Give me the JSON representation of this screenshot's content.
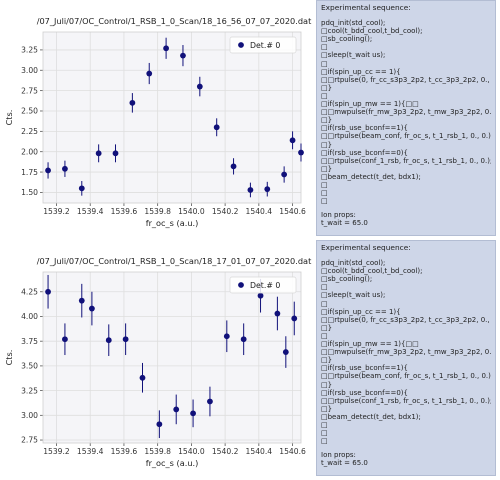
{
  "colors": {
    "marker": "#11117a",
    "grid": "#dedede",
    "plot_bg": "#f5f5f8",
    "info_bg": "#ced6e8"
  },
  "chart_data": [
    {
      "type": "scatter",
      "title": "/07_Juli/07/OC_Control/1_RSB_1_0_Scan/18_16_56_07_07_2020.dat",
      "xlabel": "fr_oc_s (a.u.)",
      "ylabel": "Cts.",
      "xlim": [
        1539.12,
        1540.65
      ],
      "ylim": [
        1.37,
        3.47
      ],
      "xticks": [
        "1539.2",
        "1539.4",
        "1539.6",
        "1539.8",
        "1540.0",
        "1540.2",
        "1540.4",
        "1540.6"
      ],
      "xtick_values": [
        1539.2,
        1539.4,
        1539.6,
        1539.8,
        1540.0,
        1540.2,
        1540.4,
        1540.6
      ],
      "yticks": [
        "1.50",
        "1.75",
        "2.00",
        "2.25",
        "2.50",
        "2.75",
        "3.00",
        "3.25"
      ],
      "ytick_values": [
        1.5,
        1.75,
        2.0,
        2.25,
        2.5,
        2.75,
        3.0,
        3.25
      ],
      "legend": {
        "label": "Det.# 0",
        "placement": "top-right"
      },
      "grid": true,
      "series": [
        {
          "name": "Det.# 0",
          "x": [
            1539.15,
            1539.25,
            1539.35,
            1539.45,
            1539.55,
            1539.65,
            1539.75,
            1539.85,
            1539.95,
            1540.05,
            1540.15,
            1540.25,
            1540.35,
            1540.45,
            1540.55,
            1540.65
          ],
          "y": [
            1.77,
            1.79,
            1.55,
            1.98,
            1.98,
            2.6,
            2.96,
            3.27,
            3.18,
            2.8,
            2.3,
            1.82,
            1.53,
            1.54,
            1.72,
            1.99
          ],
          "err": [
            0.1,
            0.1,
            0.09,
            0.11,
            0.11,
            0.12,
            0.13,
            0.13,
            0.13,
            0.12,
            0.11,
            0.1,
            0.09,
            0.09,
            0.1,
            0.11
          ]
        }
      ],
      "extra_points": {
        "x": [
          1540.6
        ],
        "y": [
          2.14
        ],
        "err": [
          0.11
        ]
      }
    },
    {
      "type": "scatter",
      "title": "/07_Juli/07/OC_Control/1_RSB_1_0_Scan/18_17_01_07_07_2020.dat",
      "xlabel": "fr_oc_s (a.u.)",
      "ylabel": "Cts.",
      "xlim": [
        1539.12,
        1540.65
      ],
      "ylim": [
        2.72,
        4.45
      ],
      "xticks": [
        "1539.2",
        "1539.4",
        "1539.6",
        "1539.8",
        "1540.0",
        "1540.2",
        "1540.4",
        "1540.6"
      ],
      "xtick_values": [
        1539.2,
        1539.4,
        1539.6,
        1539.8,
        1540.0,
        1540.2,
        1540.4,
        1540.6
      ],
      "yticks": [
        "2.75",
        "3.00",
        "3.25",
        "3.50",
        "3.75",
        "4.00",
        "4.25"
      ],
      "ytick_values": [
        2.75,
        3.0,
        3.25,
        3.5,
        3.75,
        4.0,
        4.25
      ],
      "legend": {
        "label": "Det.# 0",
        "placement": "top-right"
      },
      "grid": true,
      "series": [
        {
          "name": "Det.# 0",
          "x": [
            1539.15,
            1539.25,
            1539.35,
            1539.41,
            1539.51,
            1539.61,
            1539.71,
            1539.81,
            1539.91,
            1540.01,
            1540.11,
            1540.21,
            1540.31,
            1540.41,
            1540.51,
            1540.61
          ],
          "y": [
            4.25,
            3.77,
            4.16,
            4.08,
            3.76,
            3.77,
            3.38,
            2.91,
            3.06,
            3.02,
            3.14,
            3.8,
            3.77,
            4.21,
            4.03,
            3.98
          ],
          "err": [
            0.17,
            0.16,
            0.17,
            0.17,
            0.16,
            0.16,
            0.15,
            0.14,
            0.15,
            0.14,
            0.15,
            0.16,
            0.16,
            0.17,
            0.17,
            0.17
          ]
        }
      ],
      "extra_points": {
        "x": [
          1540.56
        ],
        "y": [
          3.64
        ],
        "err": [
          0.16
        ]
      }
    }
  ],
  "info_panels": [
    {
      "header": "Experimental sequence:",
      "lines": [
        "pdq_init(std_cool);",
        "□cool(t_bdd_cool,t_bd_cool);",
        "□sb_cooling();",
        "□",
        "□sleep(t_wait us);",
        "□",
        "□if(spin_up_cc == 1){",
        "□□rtpulse(0, fr_cc_s3p3_2p2, t_cc_3p3_2p2, 0., 0.);",
        "□}",
        "□",
        "□if(spin_up_mw == 1){□□",
        "□□mwpulse(fr_mw_3p3_2p2, t_mw_3p3_2p2, 0., 0.);",
        "□}",
        "□if(rsb_use_bconf==1){",
        "□□rtpulse(beam_conf, fr_oc_s, t_1_rsb_1, 0., 0.);",
        "□}",
        "□if(rsb_use_bconf==0){",
        "□□rtpulse(conf_1_rsb, fr_oc_s, t_1_rsb_1, 0., 0.);",
        "□}",
        "□beam_detect(t_det, bdx1);",
        "□",
        "□",
        "□"
      ],
      "props_title": "Ion props:",
      "props": [
        "t_wait = 65.0"
      ]
    },
    {
      "header": "Experimental sequence:",
      "lines": [
        "pdq_init(std_cool);",
        "□cool(t_bdd_cool,t_bd_cool);",
        "□sb_cooling();",
        "□",
        "□sleep(t_wait us);",
        "□",
        "□if(spin_up_cc == 1){",
        "□□rtpulse(0, fr_cc_s3p3_2p2, t_cc_3p3_2p2, 0., 0.);",
        "□}",
        "□",
        "□if(spin_up_mw == 1){□□",
        "□□mwpulse(fr_mw_3p3_2p2, t_mw_3p3_2p2, 0., 0.);",
        "□}",
        "□if(rsb_use_bconf==1){",
        "□□rtpulse(beam_conf, fr_oc_s, t_1_rsb_1, 0., 0.);",
        "□}",
        "□if(rsb_use_bconf==0){",
        "□□rtpulse(conf_1_rsb, fr_oc_s, t_1_rsb_1, 0., 0.);",
        "□}",
        "□beam_detect(t_det, bdx1);",
        "□",
        "□",
        "□"
      ],
      "props_title": "Ion props:",
      "props": [
        "t_wait = 65.0"
      ]
    }
  ]
}
